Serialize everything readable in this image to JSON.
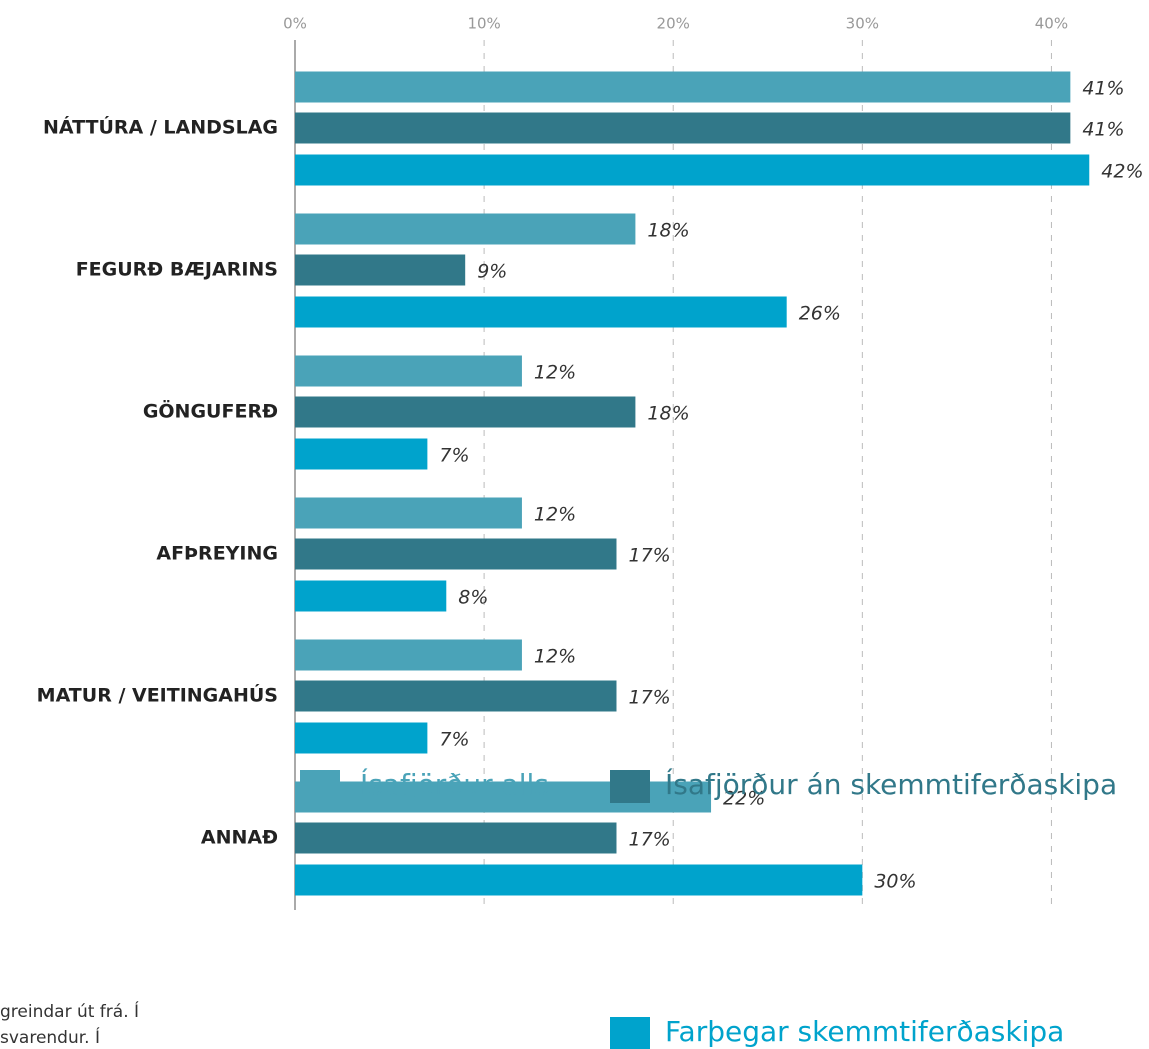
{
  "chart_data": {
    "type": "bar",
    "orientation": "horizontal",
    "categories": [
      "NÁTTÚRA / LANDSLAG",
      "FEGURÐ BÆJARINS",
      "GÖNGUFERÐ",
      "AFÞREYING",
      "MATUR / VEITINGAHÚS",
      "ANNAÐ"
    ],
    "series": [
      {
        "name": "Ísafjörður alls",
        "color": "#4aa3b8",
        "values": [
          41,
          18,
          12,
          12,
          12,
          22
        ],
        "value_labels": [
          "41%",
          "18%",
          "12%",
          "12%",
          "12%",
          "22%"
        ]
      },
      {
        "name": "Ísafjörður án skemmtiferðaskipa",
        "color": "#317889",
        "values": [
          41,
          9,
          18,
          17,
          17,
          17
        ],
        "value_labels": [
          "41%",
          "9%",
          "18%",
          "17%",
          "17%",
          "17%"
        ]
      },
      {
        "name": "Farþegar skemmtiferðaskipa",
        "color": "#00a3cc",
        "values": [
          42,
          26,
          7,
          8,
          7,
          30
        ],
        "value_labels": [
          "42%",
          "26%",
          "7%",
          "8%",
          "7%",
          "30%"
        ]
      }
    ],
    "xlim": [
      0,
      45
    ],
    "xticks": [
      {
        "value": 0,
        "label": "0%"
      },
      {
        "value": 10,
        "label": "10%"
      },
      {
        "value": 20,
        "label": "20%"
      },
      {
        "value": 30,
        "label": "30%"
      },
      {
        "value": 40,
        "label": "40%"
      }
    ],
    "grid": true,
    "legend": "bottom",
    "footnote": [
      "greindar út frá. Í",
      "svarendur. Í"
    ]
  }
}
